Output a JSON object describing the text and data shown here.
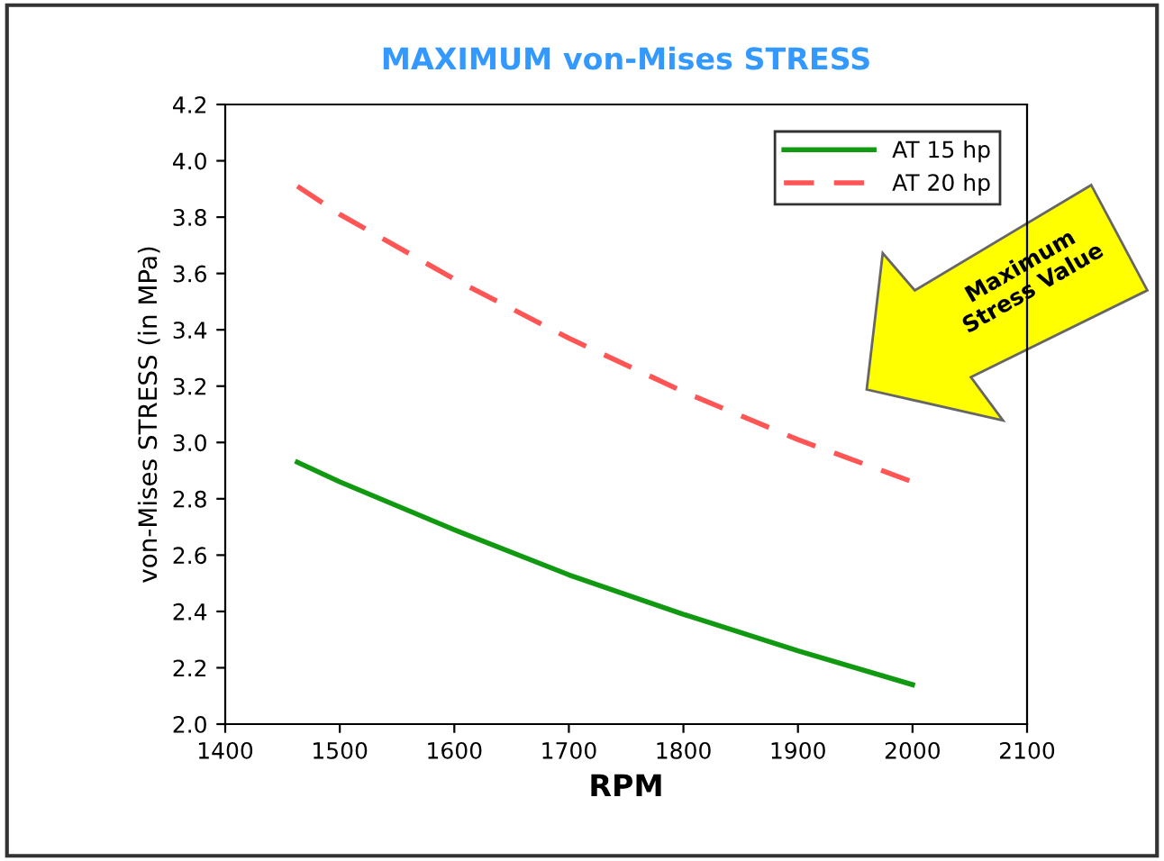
{
  "chart_data": {
    "type": "line",
    "title": "MAXIMUM von-Mises STRESS",
    "xlabel": "RPM",
    "ylabel": "von-Mises STRESS (in MPa)",
    "x": [
      1463,
      1500,
      1600,
      1700,
      1800,
      1900,
      2000
    ],
    "series": [
      {
        "name": "AT 15 hp",
        "color": "#119911",
        "line_style": "solid",
        "values": [
          2.93,
          2.86,
          2.69,
          2.53,
          2.39,
          2.26,
          2.14
        ]
      },
      {
        "name": "AT 20 hp",
        "color": "#ff5555",
        "line_style": "dashed",
        "values": [
          3.91,
          3.81,
          3.58,
          3.37,
          3.18,
          3.01,
          2.86
        ]
      }
    ],
    "xlim": [
      1400,
      2100
    ],
    "xticks": [
      1400,
      1500,
      1600,
      1700,
      1800,
      1900,
      2000,
      2100
    ],
    "ylim": [
      2.0,
      4.2
    ],
    "yticks": [
      {
        "value": 2.0,
        "label": "2.0"
      },
      {
        "value": 2.2,
        "label": "2.2"
      },
      {
        "value": 2.4,
        "label": "2.4"
      },
      {
        "value": 2.6,
        "label": "2.6"
      },
      {
        "value": 2.8,
        "label": "2.8"
      },
      {
        "value": 3.0,
        "label": "3.0"
      },
      {
        "value": 3.2,
        "label": "3.2"
      },
      {
        "value": 3.4,
        "label": "3.4"
      },
      {
        "value": 3.6,
        "label": "3.6"
      },
      {
        "value": 3.8,
        "label": "3.8"
      },
      {
        "value": 4.0,
        "label": "4.0"
      },
      {
        "value": 4.2,
        "label": "4.2"
      }
    ],
    "annotations": [
      "Maximum\nStress Value"
    ],
    "legend": "top right",
    "grid": false,
    "marker": "none"
  }
}
